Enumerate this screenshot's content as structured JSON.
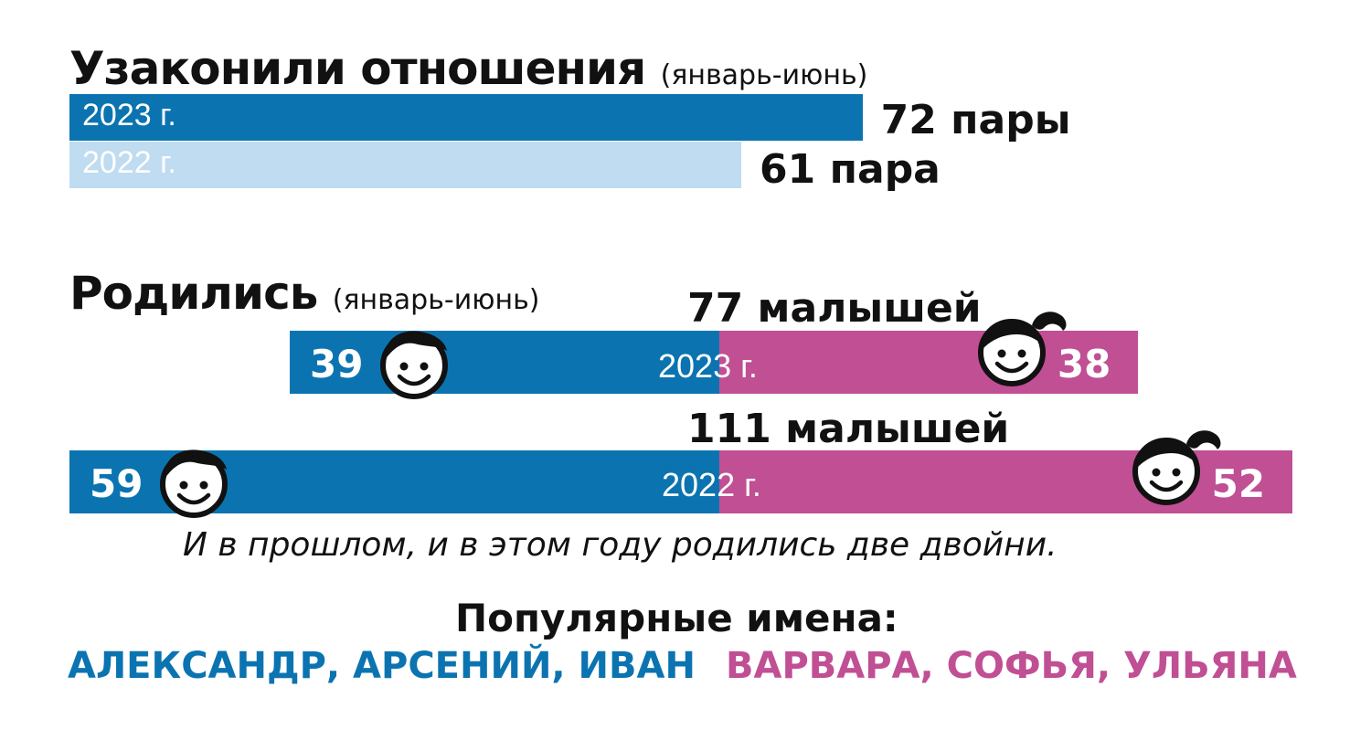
{
  "colors": {
    "blue": "#0b74b0",
    "light_blue": "#bfdcf1",
    "pink": "#c04f94",
    "text": "#111111"
  },
  "marriages": {
    "title": "Узаконили отношения",
    "period": "(январь-июнь)",
    "rows": [
      {
        "year": "2023 г.",
        "value": 72,
        "label": "72 пары"
      },
      {
        "year": "2022 г.",
        "value": 61,
        "label": "61 пара"
      }
    ]
  },
  "births": {
    "title": "Родились",
    "period": "(январь-июнь)",
    "rows": [
      {
        "year": "2023 г.",
        "total_label": "77 малышей",
        "boys": 39,
        "girls": 38,
        "boys_label": "39",
        "girls_label": "38"
      },
      {
        "year": "2022 г.",
        "total_label": "111 малышей",
        "boys": 59,
        "girls": 52,
        "boys_label": "59",
        "girls_label": "52"
      }
    ],
    "icons": {
      "boy": "boy-face-icon",
      "girl": "girl-face-icon"
    }
  },
  "note": "И в прошлом, и в этом году родились две двойни.",
  "names": {
    "title": "Популярные имена:",
    "boys": "АЛЕКСАНДР, АРСЕНИЙ, ИВАН",
    "girls": "ВАРВАРА, СОФЬЯ, УЛЬЯНА"
  },
  "chart_data": [
    {
      "type": "bar",
      "title": "Узаконили отношения",
      "subtitle": "(январь-июнь)",
      "categories": [
        "2023 г.",
        "2022 г."
      ],
      "values": [
        72,
        61
      ],
      "data_labels": [
        "72 пары",
        "61 пара"
      ],
      "orientation": "horizontal"
    },
    {
      "type": "bar",
      "title": "Родились",
      "subtitle": "(январь-июнь)",
      "categories": [
        "2023 г.",
        "2022 г."
      ],
      "series": [
        {
          "values": [
            39,
            59
          ]
        },
        {
          "values": [
            38,
            52
          ]
        }
      ],
      "totals": [
        77,
        111
      ],
      "data_labels": [
        "77 малышей",
        "111 малышей"
      ],
      "orientation": "horizontal",
      "stacked": true
    }
  ]
}
